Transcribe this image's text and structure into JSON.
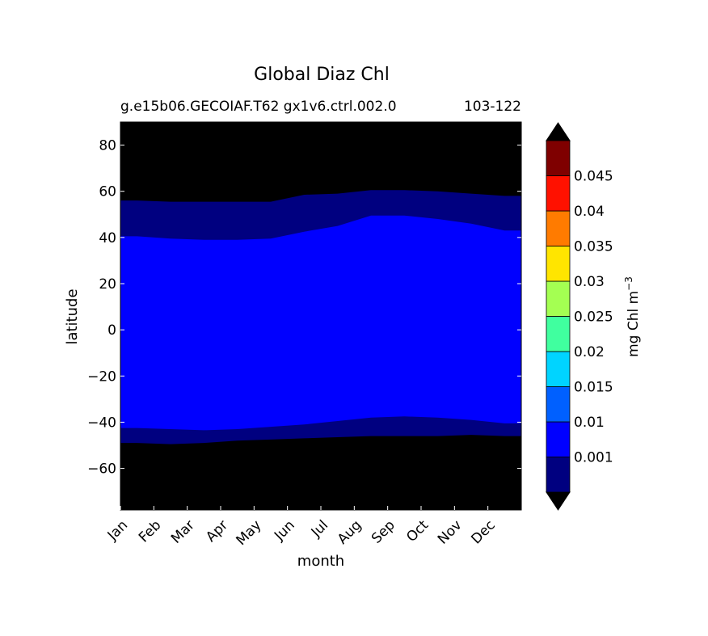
{
  "chart_data": {
    "type": "heatmap",
    "title": "Global Diaz Chl",
    "subtitle_left": "g.e15b06.GECOIAF.T62 gx1v6.ctrl.002.0",
    "subtitle_right": "103-122",
    "xlabel": "month",
    "ylabel": "latitude",
    "x_categories": [
      "Jan",
      "Feb",
      "Mar",
      "Apr",
      "May",
      "Jun",
      "Jul",
      "Aug",
      "Sep",
      "Oct",
      "Nov",
      "Dec"
    ],
    "y_ticks": [
      80,
      60,
      40,
      20,
      0,
      -20,
      -40,
      -60
    ],
    "y_tick_labels": [
      "80",
      "60",
      "40",
      "20",
      "0",
      "−20",
      "−40",
      "−60"
    ],
    "ylim": [
      -78,
      90
    ],
    "colorbar": {
      "label_main": "mg Chl m",
      "label_exp": "−3",
      "levels": [
        0.001,
        0.01,
        0.015,
        0.02,
        0.025,
        0.03,
        0.035,
        0.04,
        0.045
      ],
      "tick_labels": [
        "0.001",
        "0.01",
        "0.015",
        "0.02",
        "0.025",
        "0.03",
        "0.035",
        "0.04",
        "0.045"
      ],
      "colors": [
        "#000080",
        "#0000ff",
        "#0060ff",
        "#00d4ff",
        "#40ff9f",
        "#a4ff52",
        "#ffe500",
        "#ff7b00",
        "#ff1100",
        "#7f0000"
      ],
      "under_color": "#000000",
      "over_color": "#000000"
    },
    "contours": {
      "months_x": [
        0.5,
        1.5,
        2.5,
        3.5,
        4.5,
        5.5,
        6.5,
        7.5,
        8.5,
        9.5,
        10.5,
        11.5
      ],
      "north_outer": [
        56,
        55.5,
        55.5,
        55.5,
        55.5,
        58.5,
        59,
        60.5,
        60.5,
        60,
        59,
        58
      ],
      "north_inner": [
        40.5,
        39.5,
        39,
        39,
        39.5,
        42.5,
        45,
        49.5,
        49.5,
        48,
        46,
        43
      ],
      "south_inner": [
        -42.5,
        -43,
        -43.5,
        -43,
        -42,
        -41,
        -39.5,
        -38,
        -37.5,
        -38,
        -39,
        -40.5
      ],
      "south_outer": [
        -49,
        -49.5,
        -49,
        -48,
        -47.5,
        -47,
        -46.5,
        -46,
        -46,
        -46,
        -45.5,
        -46
      ]
    }
  }
}
